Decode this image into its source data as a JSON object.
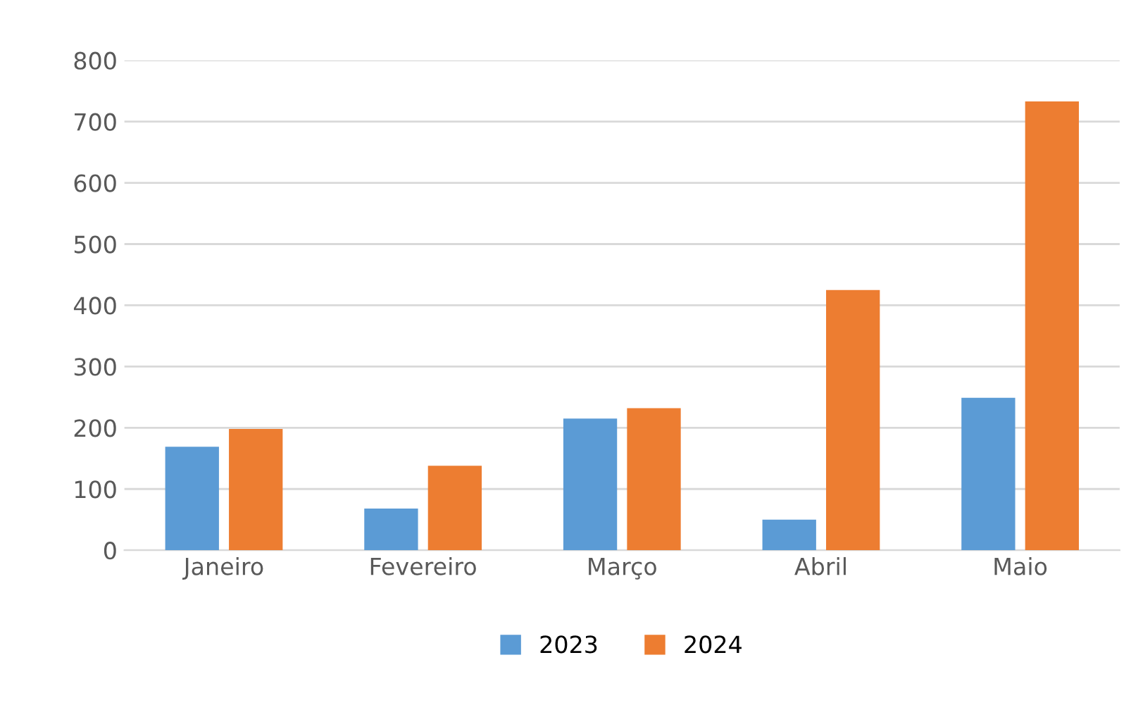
{
  "chart_data": {
    "type": "bar",
    "categories": [
      "Janeiro",
      "Fevereiro",
      "Março",
      "Abril",
      "Maio"
    ],
    "series": [
      {
        "name": "2023",
        "color": "#5b9bd5",
        "values": [
          169,
          68,
          215,
          50,
          249
        ]
      },
      {
        "name": "2024",
        "color": "#ed7d31",
        "values": [
          198,
          138,
          232,
          425,
          733
        ]
      }
    ],
    "ylim": [
      0,
      800
    ],
    "yticks": [
      0,
      100,
      200,
      300,
      400,
      500,
      600,
      700,
      800
    ],
    "grid": "y",
    "legend": "bottom"
  }
}
